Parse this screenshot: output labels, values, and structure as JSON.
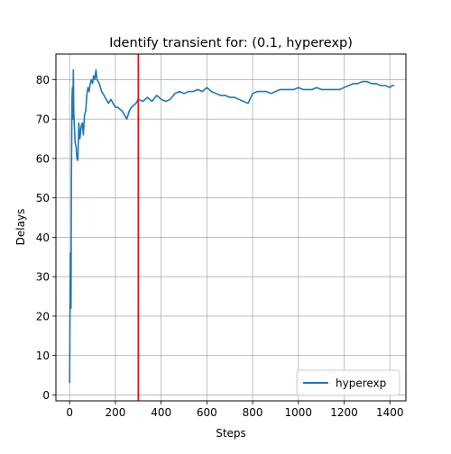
{
  "chart_data": {
    "type": "line",
    "title": "Identify transient for: (0.1, hyperexp)",
    "xlabel": "Steps",
    "ylabel": "Delays",
    "xlim": [
      -60,
      1470
    ],
    "ylim": [
      -1.5,
      86.5
    ],
    "xticks": [
      0,
      200,
      400,
      600,
      800,
      1000,
      1200,
      1400
    ],
    "yticks": [
      0,
      10,
      20,
      30,
      40,
      50,
      60,
      70,
      80
    ],
    "grid": true,
    "legend_position": "lower-right",
    "series": [
      {
        "name": "hyperexp",
        "color": "#1f77b4",
        "x": [
          0,
          2,
          4,
          6,
          8,
          10,
          12,
          14,
          16,
          18,
          20,
          24,
          28,
          32,
          36,
          40,
          45,
          50,
          55,
          60,
          65,
          70,
          75,
          80,
          85,
          90,
          95,
          100,
          105,
          110,
          115,
          120,
          130,
          140,
          150,
          160,
          170,
          180,
          190,
          200,
          210,
          220,
          230,
          240,
          250,
          260,
          270,
          280,
          290,
          300,
          320,
          340,
          360,
          380,
          400,
          420,
          440,
          460,
          480,
          500,
          520,
          540,
          560,
          580,
          600,
          620,
          640,
          660,
          680,
          700,
          720,
          740,
          760,
          780,
          800,
          820,
          840,
          860,
          880,
          900,
          920,
          940,
          960,
          980,
          1000,
          1020,
          1040,
          1060,
          1080,
          1100,
          1120,
          1140,
          1160,
          1180,
          1200,
          1220,
          1240,
          1260,
          1280,
          1300,
          1320,
          1340,
          1360,
          1380,
          1400,
          1410,
          1420
        ],
        "y": [
          3,
          25,
          36,
          22,
          55,
          75,
          78,
          70,
          82.5,
          72,
          69,
          64,
          63,
          60,
          59.5,
          69,
          65,
          68,
          69,
          66,
          71,
          72,
          76,
          78,
          77,
          79,
          80,
          79,
          81,
          80,
          82.5,
          80,
          79,
          77,
          76,
          75,
          74,
          75,
          74,
          73,
          73,
          72.5,
          72,
          71,
          70,
          72,
          73,
          73.5,
          74,
          75,
          74.5,
          75.5,
          74.5,
          76,
          75,
          74.5,
          75,
          76.5,
          77,
          76.5,
          77,
          77,
          77.5,
          77,
          78,
          77,
          76.5,
          76,
          76,
          75.5,
          75.5,
          75,
          74.5,
          74,
          76.5,
          77,
          77,
          77,
          76.5,
          77,
          77.5,
          77.5,
          77.5,
          77.5,
          78,
          77.5,
          77.5,
          77.5,
          78,
          77.5,
          77.5,
          77.5,
          77.5,
          77.5,
          78,
          78.5,
          79,
          79,
          79.5,
          79.5,
          79,
          79,
          78.5,
          78.5,
          78,
          78.5,
          78.5
        ]
      }
    ],
    "vlines": [
      {
        "x": 300,
        "color": "#ff0000"
      }
    ]
  }
}
